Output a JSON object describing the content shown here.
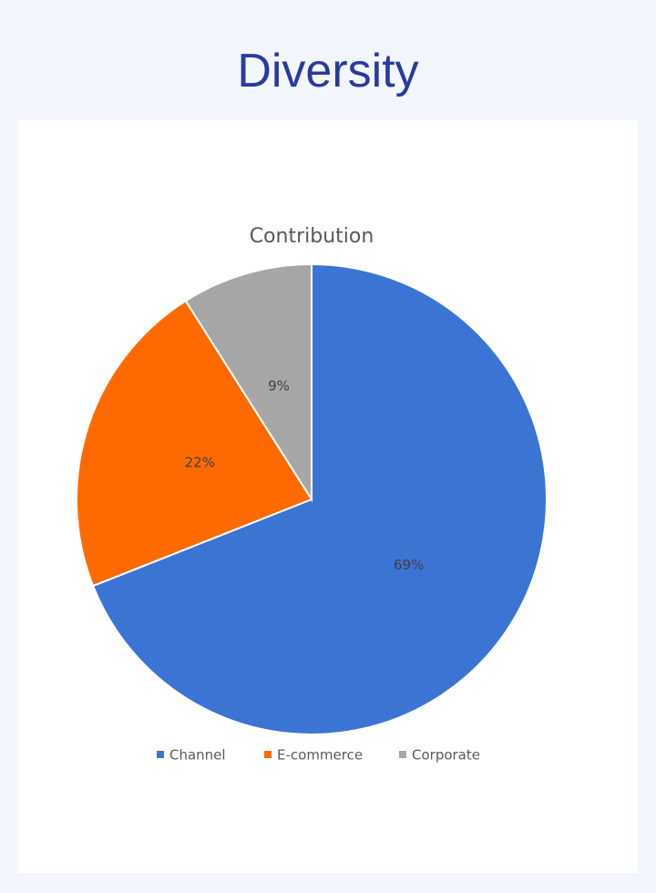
{
  "heading": "Diversity",
  "chart_data": {
    "type": "pie",
    "title": "Contribution",
    "categories": [
      "Channel",
      "E-commerce",
      "Corporate"
    ],
    "values": [
      69,
      22,
      9
    ],
    "value_labels": [
      "69%",
      "22%",
      "9%"
    ],
    "colors": [
      "#3c74d4",
      "#ff6a00",
      "#a6a6a6"
    ],
    "legend": "bottom"
  }
}
